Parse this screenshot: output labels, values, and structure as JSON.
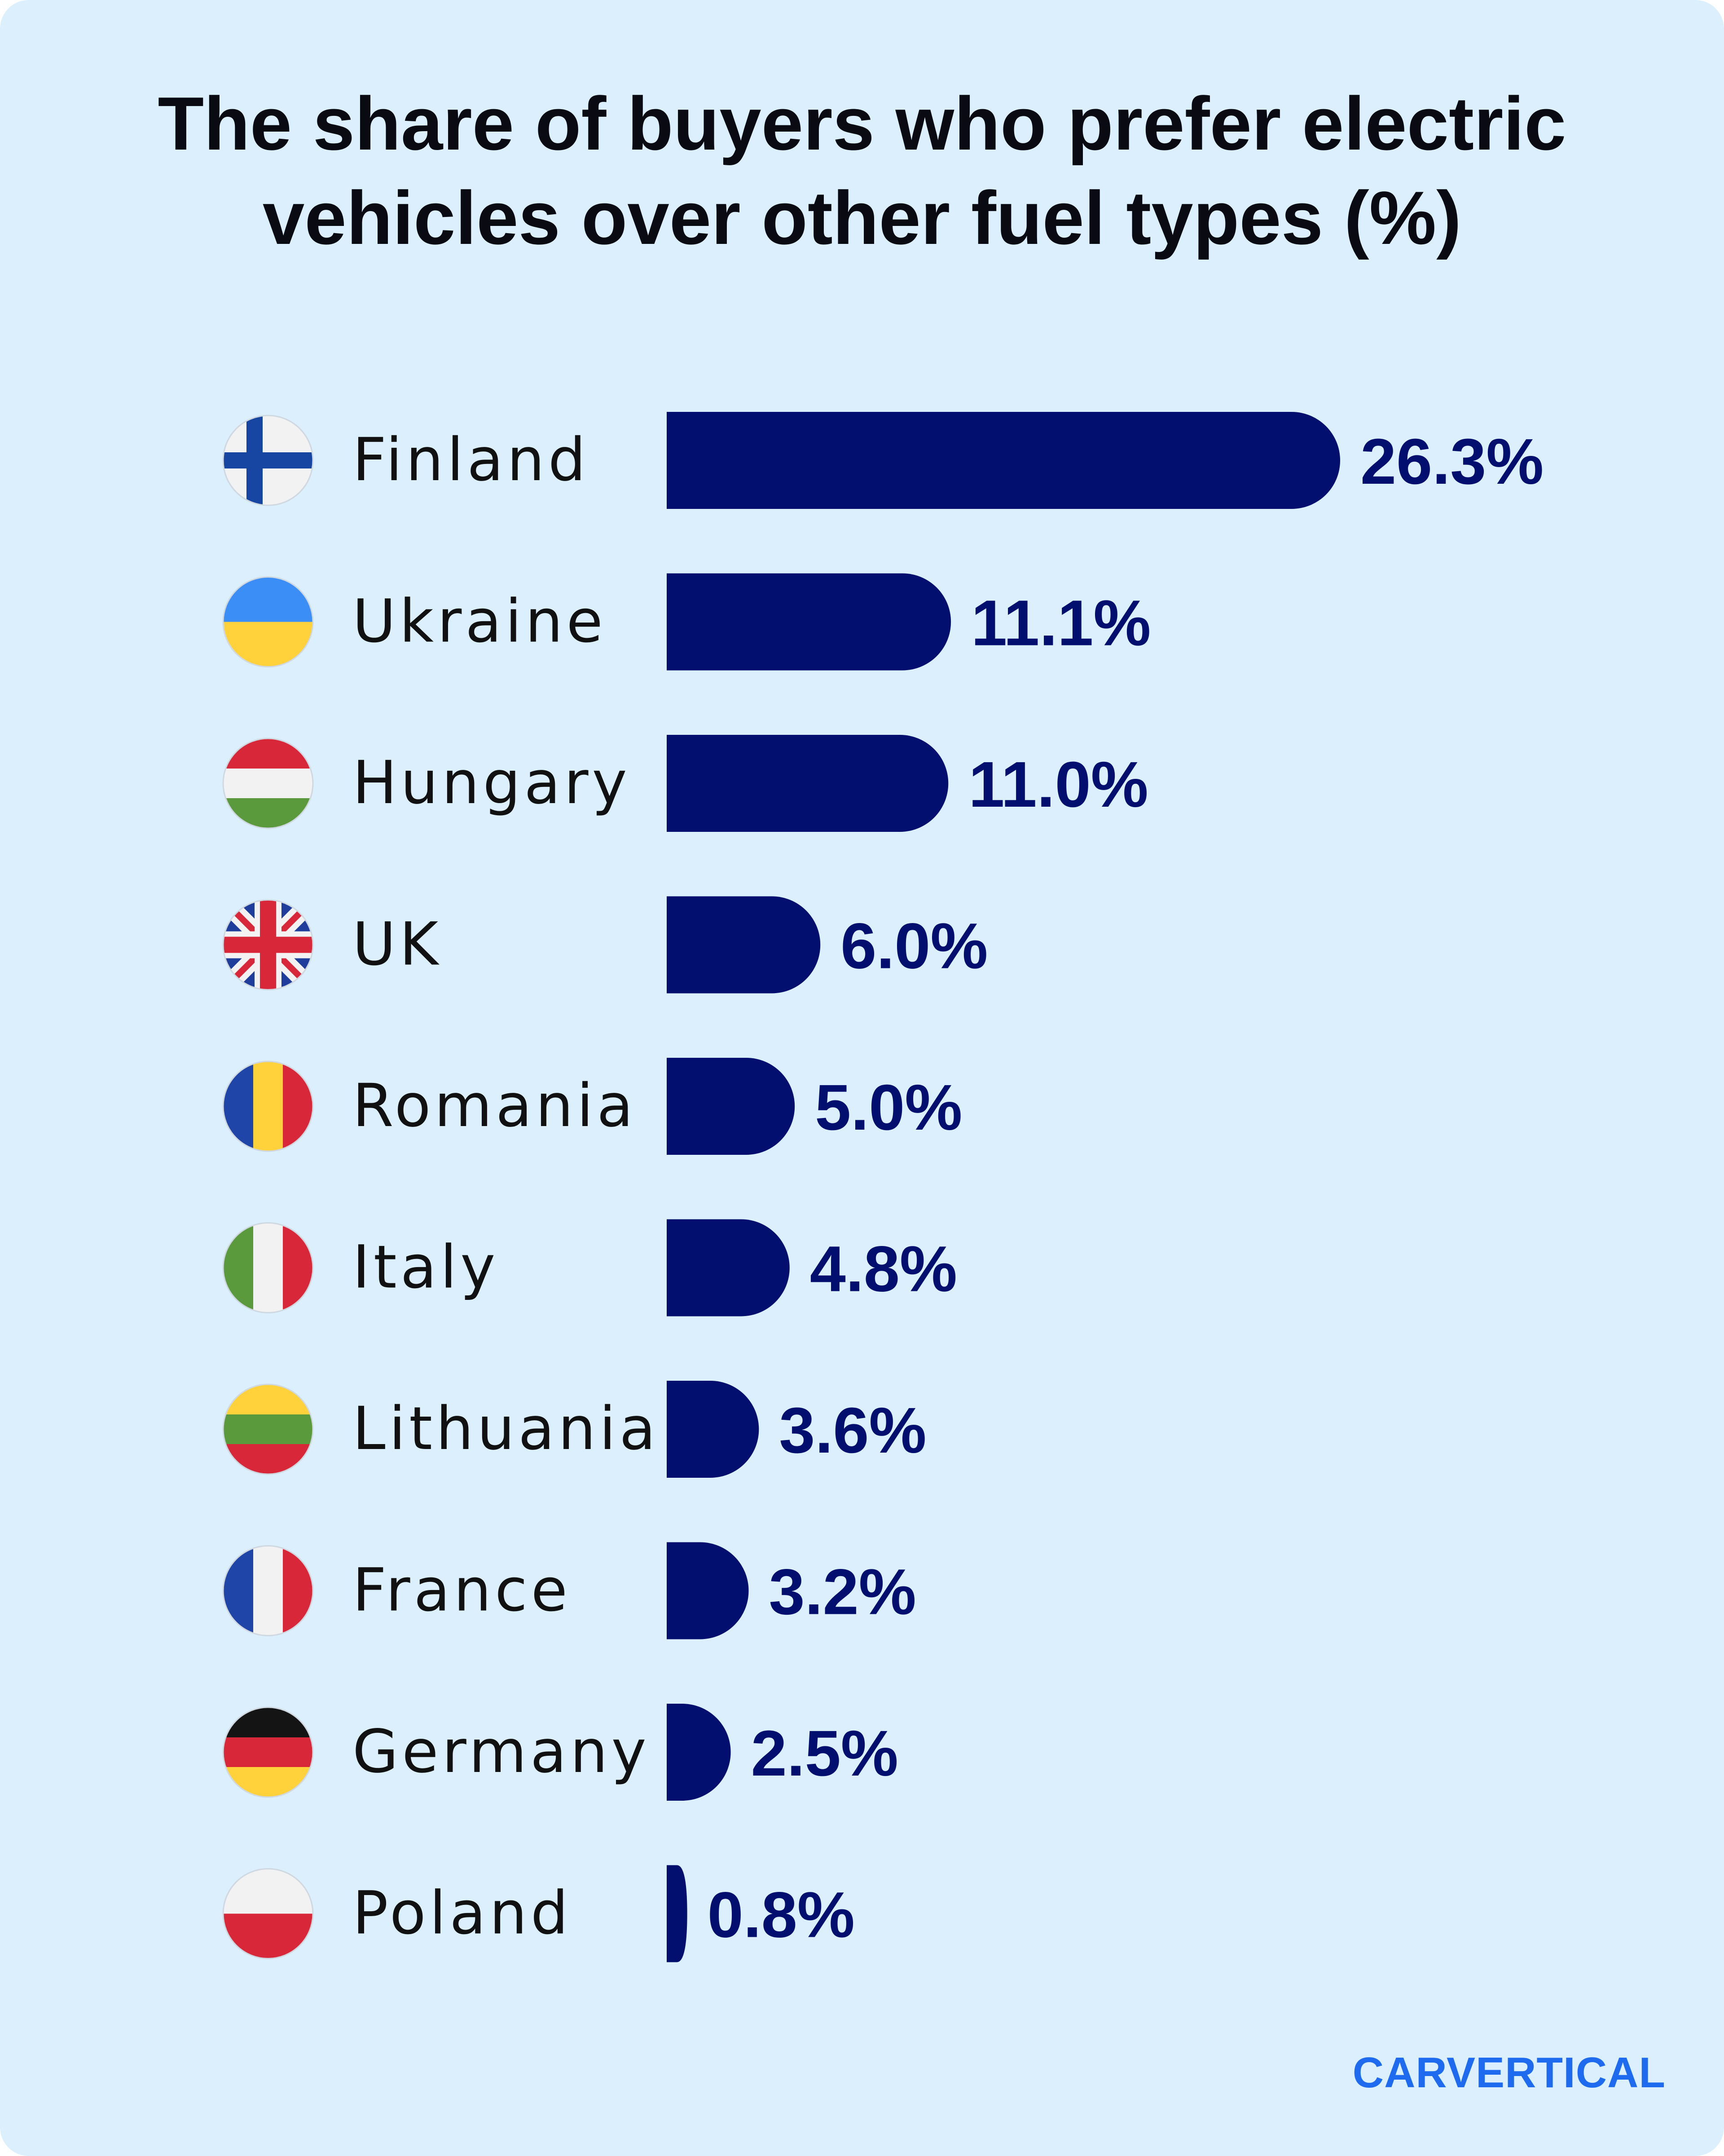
{
  "chart_data": {
    "type": "bar",
    "orientation": "horizontal",
    "title": "The share of buyers who prefer electric vehicles over other fuel types (%)",
    "categories": [
      "Finland",
      "Ukraine",
      "Hungary",
      "UK",
      "Romania",
      "Italy",
      "Lithuania",
      "France",
      "Germany",
      "Poland"
    ],
    "values": [
      26.3,
      11.1,
      11.0,
      6.0,
      5.0,
      4.8,
      3.6,
      3.2,
      2.5,
      0.8
    ],
    "value_labels": [
      "26.3%",
      "11.1%",
      "11.0%",
      "6.0%",
      "5.0%",
      "4.8%",
      "3.6%",
      "3.2%",
      "2.5%",
      "0.8%"
    ],
    "flag_icons": [
      "finland-flag-icon",
      "ukraine-flag-icon",
      "hungary-flag-icon",
      "uk-flag-icon",
      "romania-flag-icon",
      "italy-flag-icon",
      "lithuania-flag-icon",
      "france-flag-icon",
      "germany-flag-icon",
      "poland-flag-icon"
    ],
    "xlim": [
      0,
      26.3
    ],
    "grid": false,
    "legend": "none",
    "bar_color": "#020f6e",
    "label_color": "#020f6e"
  },
  "colors": {
    "background": "#dbf0fc",
    "title": "#0a0a12",
    "category_label": "#111111",
    "logo": "#1e6bf0"
  },
  "brand": {
    "logo_text": "CARVERTICAL"
  }
}
